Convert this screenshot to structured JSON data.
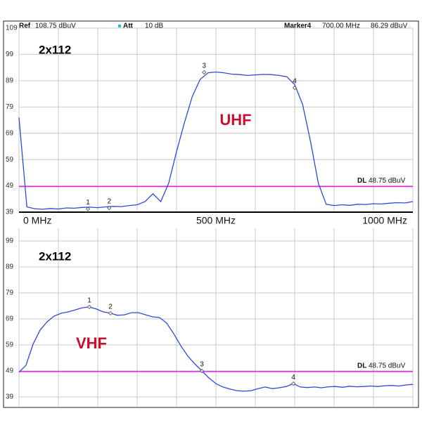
{
  "header": {
    "ref_label": "Ref",
    "ref_value": "108.75 dBuV",
    "att_label": "Att",
    "att_value": "10 dB",
    "marker_label": "Marker4",
    "marker_freq": "700.00 MHz",
    "marker_level": "86.29 dBuV"
  },
  "chart_data": [
    {
      "type": "line",
      "title": "2x112",
      "band_label": "UHF",
      "x": [
        0,
        20,
        40,
        60,
        80,
        100,
        120,
        140,
        160,
        180,
        200,
        220,
        240,
        260,
        280,
        300,
        320,
        340,
        360,
        380,
        400,
        420,
        440,
        460,
        480,
        500,
        520,
        540,
        560,
        580,
        600,
        620,
        640,
        660,
        680,
        700,
        720,
        740,
        760,
        780,
        800,
        820,
        840,
        860,
        880,
        900,
        920,
        940,
        960,
        980,
        1000
      ],
      "xlim": [
        0,
        1000
      ],
      "xticks": [
        {
          "value": 0,
          "label": "0 MHz"
        },
        {
          "value": 500,
          "label": "500 MHz"
        },
        {
          "value": 1000,
          "label": "1000 MHz"
        }
      ],
      "ylim": [
        39,
        109
      ],
      "yticks": [
        39,
        49,
        59,
        69,
        79,
        89,
        99,
        109
      ],
      "grid": true,
      "series": [
        {
          "color": "#3048d8",
          "values": [
            75,
            41,
            40.3,
            40.1,
            40.4,
            40.2,
            40.6,
            40.5,
            40.8,
            40.9,
            40.7,
            41,
            41.2,
            41.1,
            41.5,
            41.8,
            43,
            46,
            43,
            50,
            62,
            73,
            83,
            89.5,
            92,
            92.3,
            92,
            91.5,
            91.3,
            91,
            91.2,
            91.4,
            91.3,
            91,
            90.5,
            87.5,
            80,
            66,
            50,
            42,
            41.5,
            41.8,
            41.6,
            42,
            41.9,
            42.2,
            42.1,
            42.4,
            42.6,
            42.5,
            43
          ]
        }
      ],
      "markers": {
        "labels": [
          "1",
          "2",
          "3",
          "4"
        ],
        "x": [
          175,
          229,
          470,
          700
        ],
        "values": [
          40.2,
          40.6,
          92.2,
          86.29
        ]
      },
      "display_line": {
        "name": "DL",
        "value": 48.75,
        "label": "48.75 dBuV",
        "color": "#e020e0"
      }
    },
    {
      "type": "line",
      "title": "2x112",
      "band_label": "VHF",
      "ylim": [
        39,
        99
      ],
      "yticks": [
        39,
        49,
        59,
        69,
        79,
        89,
        99
      ],
      "grid": true,
      "series": [
        {
          "color": "#3048d8",
          "values": [
            48.5,
            51.2,
            59.3,
            64.7,
            67.9,
            70.1,
            71.2,
            71.7,
            72.5,
            73.3,
            73.6,
            72.8,
            71.7,
            71.2,
            70.4,
            70.6,
            71.4,
            71.4,
            70.6,
            69.8,
            69.5,
            67.4,
            63.3,
            58.7,
            54.7,
            51.7,
            49,
            46.3,
            44.1,
            42.8,
            42,
            41.4,
            41.2,
            41.4,
            42.2,
            42.8,
            42.2,
            42.5,
            43,
            44.1,
            42.8,
            42.6,
            42.8,
            42.5,
            42.9,
            43,
            42.7,
            43.1,
            42.9,
            43,
            43.2,
            43,
            43.3,
            43.4,
            43.2,
            43.6,
            43.8
          ]
        }
      ],
      "markers": {
        "labels": [
          "1",
          "2",
          "3",
          "4"
        ],
        "index": [
          10,
          13,
          26,
          39
        ],
        "values": [
          73.6,
          71.2,
          49,
          44.1
        ]
      },
      "display_line": {
        "name": "DL",
        "value": 48.75,
        "label": "48.75 dBuV",
        "color": "#e020e0"
      }
    }
  ]
}
